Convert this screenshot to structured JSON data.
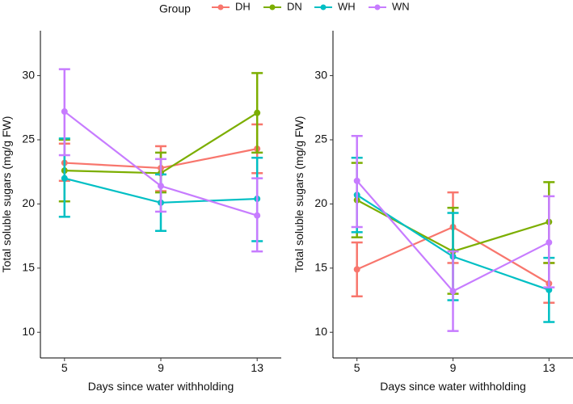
{
  "legend": {
    "title": "Group",
    "items": [
      {
        "label": "DH",
        "color": "#F8766D"
      },
      {
        "label": "DN",
        "color": "#7CAE00"
      },
      {
        "label": "WH",
        "color": "#00BFC4"
      },
      {
        "label": "WN",
        "color": "#C77CFF"
      }
    ]
  },
  "chart_data": [
    {
      "type": "line",
      "xlabel": "Days since water withholding",
      "ylabel": "Total soluble sugars (mg/g FW)",
      "x": [
        5,
        9,
        13
      ],
      "x_tick_labels": [
        "5",
        "9",
        "13"
      ],
      "y_ticks": [
        10,
        15,
        20,
        25,
        30
      ],
      "ylim": [
        8.0,
        33.5
      ],
      "series": [
        {
          "name": "DH",
          "values": [
            23.2,
            22.8,
            24.3
          ],
          "lower": [
            21.8,
            21.0,
            22.4
          ],
          "upper": [
            24.7,
            24.5,
            26.2
          ]
        },
        {
          "name": "DN",
          "values": [
            22.6,
            22.4,
            27.1
          ],
          "lower": [
            20.2,
            20.9,
            24.0
          ],
          "upper": [
            25.0,
            24.0,
            30.2
          ]
        },
        {
          "name": "WH",
          "values": [
            22.0,
            20.1,
            20.4
          ],
          "lower": [
            19.0,
            17.9,
            17.1
          ],
          "upper": [
            25.1,
            22.3,
            23.6
          ]
        },
        {
          "name": "WN",
          "values": [
            27.2,
            21.4,
            19.1
          ],
          "lower": [
            23.8,
            19.4,
            16.3
          ],
          "upper": [
            30.5,
            23.5,
            22.0
          ]
        }
      ]
    },
    {
      "type": "line",
      "xlabel": "Days since water withholding",
      "ylabel": "Total soluble sugars (mg/g FW)",
      "x": [
        5,
        9,
        13
      ],
      "x_tick_labels": [
        "5",
        "9",
        "13"
      ],
      "y_ticks": [
        10,
        15,
        20,
        25,
        30
      ],
      "ylim": [
        8.0,
        33.5
      ],
      "series": [
        {
          "name": "DH",
          "values": [
            14.9,
            18.2,
            13.8
          ],
          "lower": [
            12.8,
            15.4,
            12.3
          ],
          "upper": [
            17.0,
            20.9,
            15.4
          ]
        },
        {
          "name": "DN",
          "values": [
            20.3,
            16.3,
            18.6
          ],
          "lower": [
            17.4,
            13.0,
            15.4
          ],
          "upper": [
            23.2,
            19.7,
            21.7
          ]
        },
        {
          "name": "WH",
          "values": [
            20.7,
            15.9,
            13.3
          ],
          "lower": [
            17.8,
            12.5,
            10.8
          ],
          "upper": [
            23.6,
            19.3,
            15.8
          ]
        },
        {
          "name": "WN",
          "values": [
            21.8,
            13.2,
            17.0
          ],
          "lower": [
            18.2,
            10.1,
            13.5
          ],
          "upper": [
            25.3,
            16.3,
            20.6
          ]
        }
      ]
    }
  ]
}
